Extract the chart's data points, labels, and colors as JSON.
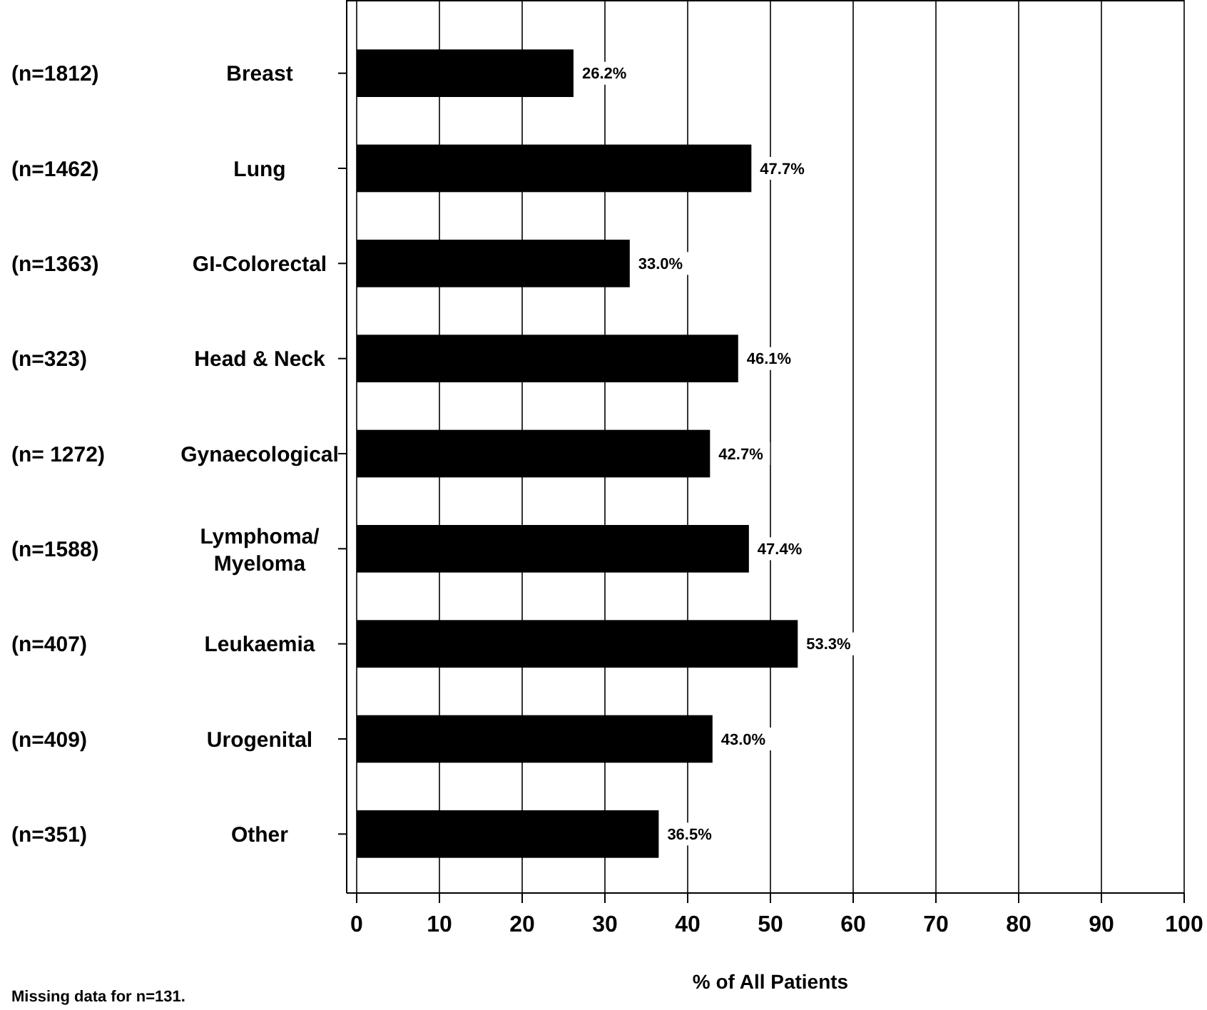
{
  "chart_data": {
    "type": "bar",
    "orientation": "horizontal",
    "xlabel": "% of All Patients",
    "categories": [
      "Breast",
      "Lung",
      "GI-Colorectal",
      "Head & Neck",
      "Gynaecological",
      "Lymphoma/Myeloma",
      "Leukaemia",
      "Urogenital",
      "Other"
    ],
    "values": [
      26.2,
      47.7,
      33.0,
      46.1,
      42.7,
      47.4,
      53.3,
      43.0,
      36.5
    ],
    "value_labels": [
      "26.2%",
      "47.7%",
      "33.0%",
      "46.1%",
      "42.7%",
      "47.4%",
      "53.3%",
      "43.0%",
      "36.5%"
    ],
    "color": "#000000",
    "xlim": [
      0,
      100
    ],
    "xticks": [
      0,
      10,
      20,
      30,
      40,
      50,
      60,
      70,
      80,
      90,
      100
    ],
    "grid": "x",
    "annotations": [
      "(n=1812)",
      "(n=1462)",
      "(n=1363)",
      "(n=323)",
      "(n= 1272)",
      "(n=1588)",
      "(n=407)",
      "(n=409)",
      "(n=351)",
      "Missing data for n=131."
    ]
  }
}
